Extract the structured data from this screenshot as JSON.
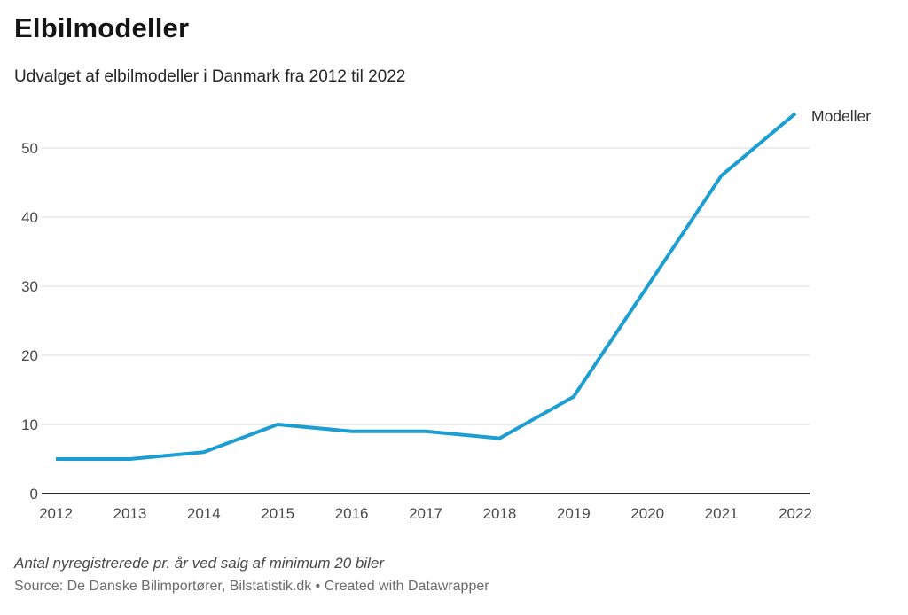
{
  "header": {
    "title": "Elbilmodeller",
    "subtitle": "Udvalget af elbilmodeller i Danmark fra 2012 til 2022"
  },
  "chart_data": {
    "type": "line",
    "title": "Elbilmodeller",
    "subtitle": "Udvalget af elbilmodeller i Danmark fra 2012 til 2022",
    "x": [
      2012,
      2013,
      2014,
      2015,
      2016,
      2017,
      2018,
      2019,
      2020,
      2021,
      2022
    ],
    "series": [
      {
        "name": "Modeller",
        "values": [
          5,
          5,
          6,
          10,
          9,
          9,
          8,
          14,
          30,
          46,
          55
        ]
      }
    ],
    "xlabel": "",
    "ylabel": "",
    "ylim": [
      0,
      57
    ],
    "yticks": [
      0,
      10,
      20,
      30,
      40,
      50
    ],
    "grid": "horizontal",
    "legend_position": "end-of-line",
    "line_color": "#1d9ed2",
    "grid_color": "#dadada",
    "axis_color": "#2f2f2f",
    "tick_label_color": "#494949",
    "series_label_color": "#333333"
  },
  "footer": {
    "note": "Antal nyregistrerede pr. år ved salg af minimum 20 biler",
    "source": "Source: De Danske Bilimportører, Bilstatistik.dk • Created with Datawrapper"
  }
}
